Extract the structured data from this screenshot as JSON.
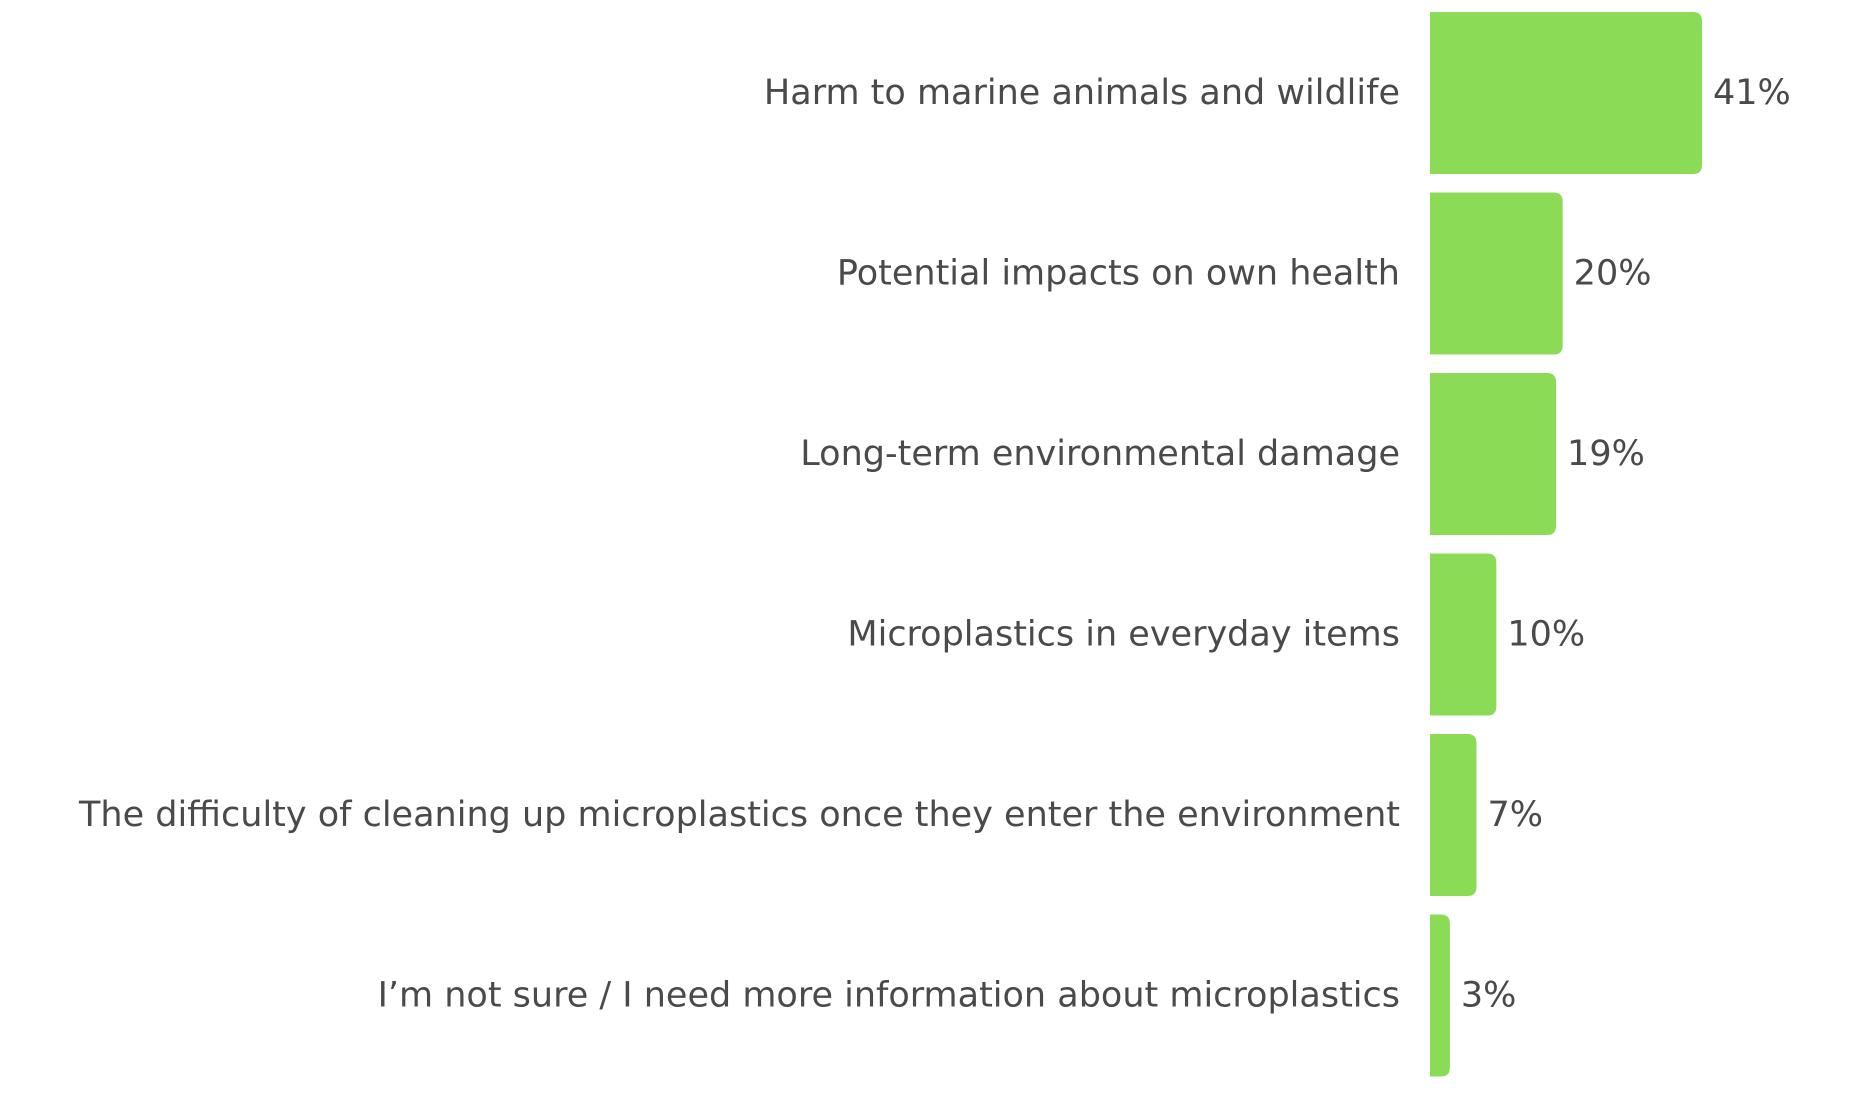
{
  "chart_data": {
    "type": "bar",
    "orientation": "horizontal",
    "categories": [
      "Harm to marine animals and wildlife",
      "Potential impacts on own health",
      "Long-term environmental damage",
      "Microplastics in everyday items",
      "The difficulty of cleaning up microplastics once they enter the environment",
      "I’m not sure / I need more information about microplastics"
    ],
    "values": [
      41,
      20,
      19,
      10,
      7,
      3
    ],
    "value_labels": [
      "41%",
      "20%",
      "19%",
      "10%",
      "7%",
      "3%"
    ],
    "unit": "%",
    "xlim": [
      0,
      41
    ],
    "grid": false,
    "legend": "none",
    "bar_color": "#8cdb57",
    "text_color": "#4a4a4a"
  }
}
